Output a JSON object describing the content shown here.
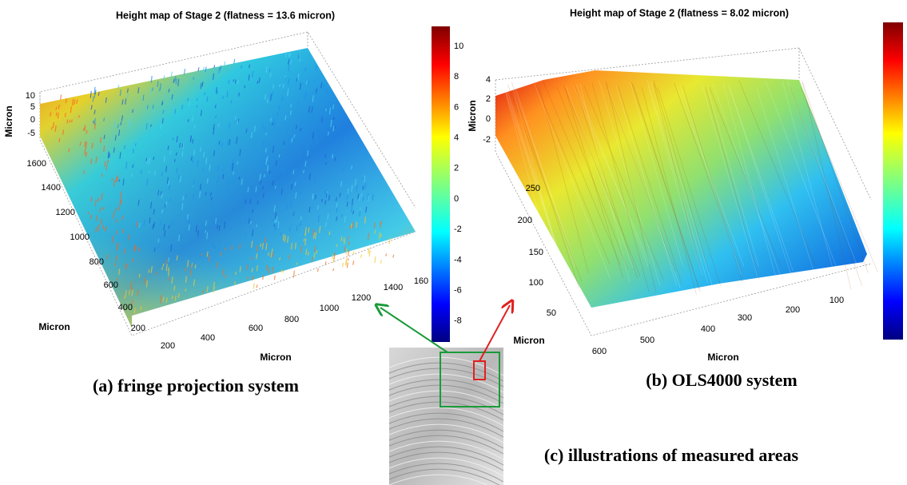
{
  "panels": [
    {
      "title": "Height map of Stage 2 (flatness = 13.6 micron)",
      "z_label": "Micron",
      "z_ticks": [
        10,
        5,
        0,
        -5
      ],
      "y_label": "Micron",
      "y_ticks": [
        1600,
        1400,
        1200,
        1000,
        800,
        600,
        400,
        200
      ],
      "x_label": "Micron",
      "x_ticks": [
        200,
        400,
        600,
        800,
        1000,
        1200,
        1400,
        160
      ],
      "colorbar_ticks": [
        10,
        8,
        6,
        4,
        2,
        0,
        -2,
        -4,
        -6,
        -8
      ],
      "caption": "(a) fringe projection system"
    },
    {
      "title": "Height map of Stage 2 (flatness = 8.02 micron)",
      "z_label": "Micron",
      "z_ticks": [
        4,
        2,
        0,
        -2
      ],
      "y_label": "Micron",
      "y_ticks": [
        250,
        200,
        150,
        100,
        50
      ],
      "x_label": "Micron",
      "x_ticks": [
        600,
        500,
        400,
        300,
        200,
        100
      ],
      "caption": "(b) OLS4000 system"
    }
  ],
  "inset": {
    "caption": "(c) illustrations of measured areas"
  }
}
